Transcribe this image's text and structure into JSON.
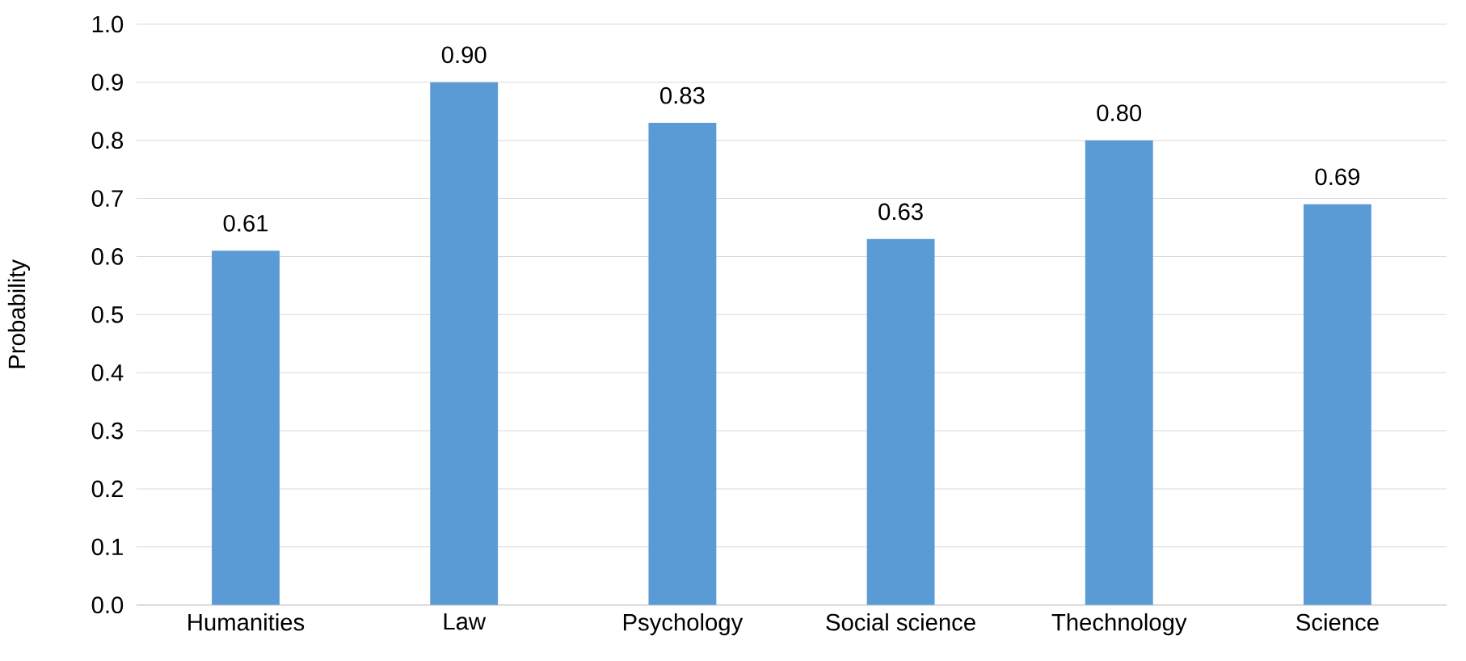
{
  "chart_data": {
    "type": "bar",
    "ylabel": "Probability",
    "categories": [
      "Humanities",
      "Law",
      "Psychology",
      "Social science",
      "Thechnology",
      "Science"
    ],
    "values": [
      0.61,
      0.9,
      0.83,
      0.63,
      0.8,
      0.69
    ],
    "value_labels": [
      "0.61",
      "0.90",
      "0.83",
      "0.63",
      "0.80",
      "0.69"
    ],
    "color": "#5b9bd5",
    "ylim": [
      0,
      1
    ],
    "yticks": [
      {
        "value": 0,
        "label": "0.0"
      },
      {
        "value": 0.1,
        "label": "0.1"
      },
      {
        "value": 0.2,
        "label": "0.2"
      },
      {
        "value": 0.3,
        "label": "0.3"
      },
      {
        "value": 0.4,
        "label": "0.4"
      },
      {
        "value": 0.5,
        "label": "0.5"
      },
      {
        "value": 0.6,
        "label": "0.6"
      },
      {
        "value": 0.7,
        "label": "0.7"
      },
      {
        "value": 0.8,
        "label": "0.8"
      },
      {
        "value": 0.9,
        "label": "0.9"
      },
      {
        "value": 1,
        "label": "1.0"
      }
    ],
    "grid": "y"
  }
}
